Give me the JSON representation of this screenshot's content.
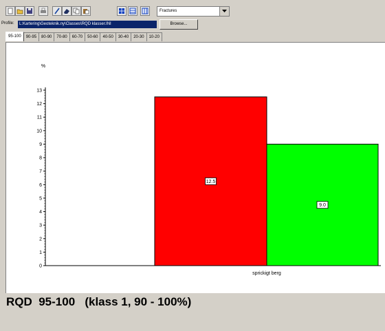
{
  "toolbar": {
    "icons": [
      "new-document-icon",
      "open-folder-icon",
      "save-icon",
      "print-icon",
      "pencil-icon",
      "eraser-icon",
      "copy-icon",
      "paste-icon",
      "grid-icon",
      "table-icon",
      "columns-icon"
    ],
    "combo_value": "Fractures"
  },
  "profile": {
    "label": "Profile:",
    "path": "L:Kartering\\Geoteknik.ny\\Classes\\RQD klasser.INI",
    "browse_label": "Browse..."
  },
  "tabs": [
    "95-100",
    "90-95",
    "80-90",
    "70-80",
    "60-70",
    "50-60",
    "40-50",
    "30-40",
    "20-30",
    "10-20"
  ],
  "active_tab": "95-100",
  "chart_data": {
    "type": "bar",
    "ylabel": "%",
    "ylim": [
      0,
      13
    ],
    "yticks": [
      "0",
      "1",
      "2",
      "3",
      "4",
      "5",
      "6",
      "7",
      "8",
      "9",
      "10",
      "11",
      "12",
      "13"
    ],
    "xlabel": "sprickigt berg",
    "series": [
      {
        "value": 12.5,
        "label": "12.5",
        "color": "#ff0000"
      },
      {
        "value": 9.0,
        "label": "9.0",
        "color": "#00ff00"
      }
    ]
  },
  "caption": "RQD  95-100   (klass 1, 90 - 100%)"
}
